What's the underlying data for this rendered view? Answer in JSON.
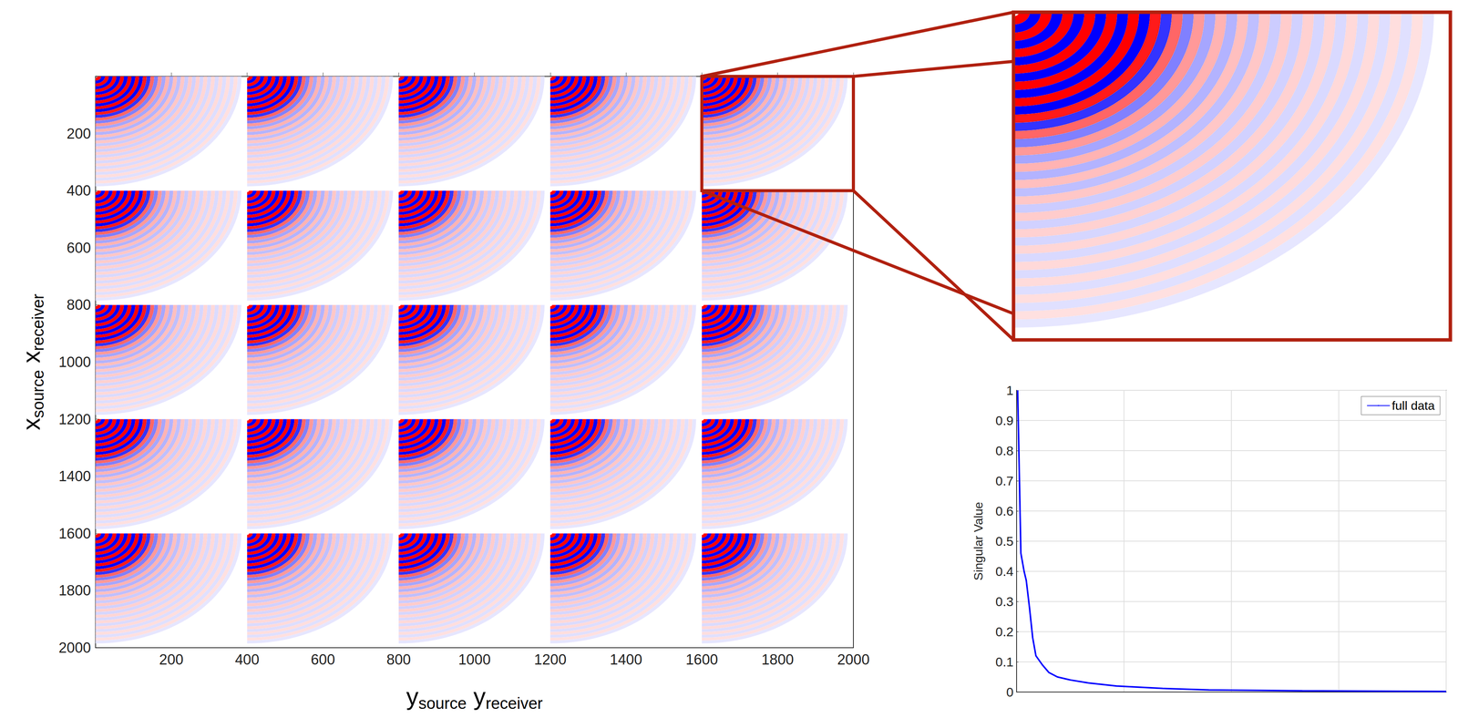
{
  "chart_data": [
    {
      "type": "wavefield",
      "xlabel": [
        {
          "text": "y",
          "subscript": "source"
        },
        {
          "text": "y",
          "subscript": "receiver"
        }
      ],
      "ylabel": [
        {
          "text": "x",
          "subscript": "source"
        },
        {
          "text": "x",
          "subscript": "receiver"
        }
      ],
      "xlim": [
        0,
        2000
      ],
      "ylim": [
        2000,
        0
      ],
      "xticks": [
        200,
        400,
        600,
        800,
        1000,
        1200,
        1400,
        1600,
        1800,
        2000
      ],
      "yticks": [
        200,
        400,
        600,
        800,
        1000,
        1200,
        1400,
        1600,
        1800,
        2000
      ],
      "block_origins_x": [
        0,
        400,
        800,
        1200,
        1600
      ],
      "block_origins_y": [
        0,
        400,
        800,
        1200,
        1600
      ],
      "ring_radius": [
        10,
        20,
        30,
        40,
        50,
        60,
        70,
        80,
        90,
        100,
        110,
        120,
        130,
        140,
        150,
        160,
        170,
        180,
        190,
        200,
        210,
        220,
        230,
        240,
        250,
        260,
        270,
        280,
        290,
        300,
        310,
        320,
        330,
        340,
        350,
        360,
        370,
        380
      ],
      "ring_amplitude": [
        1,
        -1,
        1,
        -1,
        1,
        -1,
        1,
        -1,
        1,
        -1,
        1,
        -1,
        0.9,
        -0.8,
        0.6,
        -0.5,
        0.4,
        -0.35,
        0.3,
        -0.3,
        0.25,
        -0.25,
        0.22,
        -0.2,
        0.2,
        -0.18,
        0.18,
        -0.16,
        0.16,
        -0.15,
        0.15,
        -0.14,
        0.14,
        -0.13,
        0.13,
        -0.12,
        0.12,
        -0.1
      ],
      "color_range": [
        -1,
        1
      ],
      "colormap": [
        "#0000ff",
        "#ffffff",
        "#ff0000"
      ]
    },
    {
      "type": "zoom",
      "xlim": [
        1600,
        2000
      ],
      "ylim": [
        400,
        0
      ],
      "color": "#b0200f",
      "tick_labels": false
    },
    {
      "type": "line",
      "ylabel": "Singular Value",
      "x": [
        1,
        4,
        7,
        9,
        12,
        15,
        18,
        24,
        30,
        38,
        50,
        67,
        93,
        136,
        179,
        266,
        400
      ],
      "series": [
        {
          "name": "full data",
          "color": "#0000ff",
          "values": [
            1,
            0.46,
            0.4,
            0.37,
            0.28,
            0.18,
            0.12,
            0.09,
            0.065,
            0.05,
            0.04,
            0.03,
            0.02,
            0.012,
            0.007,
            0.004,
            0.002
          ]
        }
      ],
      "xlim": [
        0,
        400
      ],
      "ylim": [
        0,
        1
      ],
      "xticks": [
        0,
        100,
        200,
        300,
        400
      ],
      "yticks": [
        0,
        0.1,
        0.2,
        0.3,
        0.4,
        0.5,
        0.6,
        0.7,
        0.8,
        0.9,
        1
      ],
      "grid": true,
      "legend": "upper right",
      "tick_labels": "y"
    }
  ]
}
